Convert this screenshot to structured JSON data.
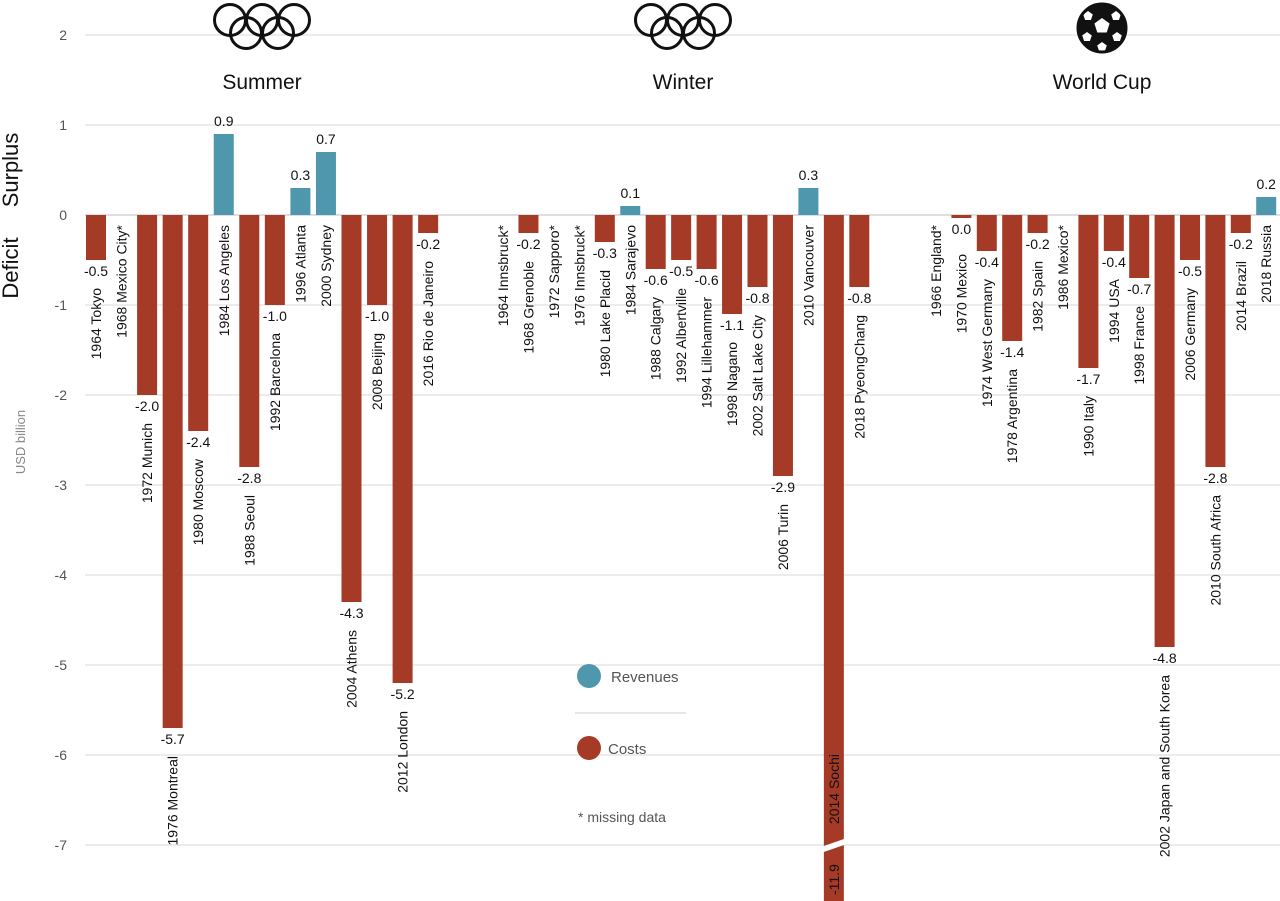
{
  "chart_data": {
    "type": "bar",
    "ylabel": "USD billion",
    "surplus_label": "Surplus",
    "deficit_label": "Deficit",
    "ylim": [
      -7.6,
      2.2
    ],
    "yticks": [
      2,
      1,
      0,
      -1,
      -2,
      -3,
      -4,
      -5,
      -6,
      -7
    ],
    "grid": true,
    "legend_position": "center-bottom",
    "colors": {
      "revenues": "#4e97ad",
      "costs": "#a53a27",
      "grid": "#d9d9d9"
    },
    "legend": {
      "revenues": "Revenues",
      "costs": "Costs",
      "note": "* missing data"
    },
    "panels": [
      {
        "title": "Summer",
        "icon": "olympic-rings-icon",
        "events": [
          {
            "label": "1964 Tokyo",
            "value": -0.5,
            "value_label": "-0.5"
          },
          {
            "label": "1968 Mexico City*",
            "value": null,
            "value_label": ""
          },
          {
            "label": "1972 Munich",
            "value": -2.0,
            "value_label": "-2.0"
          },
          {
            "label": "1976 Montreal",
            "value": -5.7,
            "value_label": "-5.7"
          },
          {
            "label": "1980 Moscow",
            "value": -2.4,
            "value_label": "-2.4"
          },
          {
            "label": "1984 Los Angeles",
            "value": 0.9,
            "value_label": "0.9"
          },
          {
            "label": "1988 Seoul",
            "value": -2.8,
            "value_label": "-2.8"
          },
          {
            "label": "1992 Barcelona",
            "value": -1.0,
            "value_label": "-1.0"
          },
          {
            "label": "1996 Atlanta",
            "value": 0.3,
            "value_label": "0.3"
          },
          {
            "label": "2000 Sydney",
            "value": 0.7,
            "value_label": "0.7"
          },
          {
            "label": "2004 Athens",
            "value": -4.3,
            "value_label": "-4.3"
          },
          {
            "label": "2008 Beijing",
            "value": -1.0,
            "value_label": "-1.0"
          },
          {
            "label": "2012 London",
            "value": -5.2,
            "value_label": "-5.2"
          },
          {
            "label": "2016 Rio de Janeiro",
            "value": -0.2,
            "value_label": "-0.2"
          }
        ]
      },
      {
        "title": "Winter",
        "icon": "olympic-rings-icon",
        "events": [
          {
            "label": "1964 Innsbruck*",
            "value": null,
            "value_label": ""
          },
          {
            "label": "1968 Grenoble",
            "value": -0.2,
            "value_label": "-0.2"
          },
          {
            "label": "1972 Sapporo*",
            "value": null,
            "value_label": ""
          },
          {
            "label": "1976 Innsbruck*",
            "value": null,
            "value_label": ""
          },
          {
            "label": "1980 Lake Placid",
            "value": -0.3,
            "value_label": "-0.3"
          },
          {
            "label": "1984 Sarajevo",
            "value": 0.1,
            "value_label": "0.1"
          },
          {
            "label": "1988 Calgary",
            "value": -0.6,
            "value_label": "-0.6"
          },
          {
            "label": "1992 Albertville",
            "value": -0.5,
            "value_label": "-0.5"
          },
          {
            "label": "1994 Lillehammer",
            "value": -0.6,
            "value_label": "-0.6"
          },
          {
            "label": "1998 Nagano",
            "value": -1.1,
            "value_label": "-1.1"
          },
          {
            "label": "2002 Salt Lake City",
            "value": -0.8,
            "value_label": "-0.8"
          },
          {
            "label": "2006 Turin",
            "value": -2.9,
            "value_label": "-2.9"
          },
          {
            "label": "2010 Vancouver",
            "value": 0.3,
            "value_label": "0.3"
          },
          {
            "label": "2014 Sochi",
            "value": -11.9,
            "value_label": "-11.9",
            "broken": true
          },
          {
            "label": "2018 PyeongChang",
            "value": -0.8,
            "value_label": "-0.8"
          }
        ]
      },
      {
        "title": "World Cup",
        "icon": "soccer-ball-icon",
        "events": [
          {
            "label": "1966 England*",
            "value": null,
            "value_label": ""
          },
          {
            "label": "1970 Mexico",
            "value": 0.0,
            "value_label": "0.0"
          },
          {
            "label": "1974 West Germany",
            "value": -0.4,
            "value_label": "-0.4"
          },
          {
            "label": "1978 Argentina",
            "value": -1.4,
            "value_label": "-1.4"
          },
          {
            "label": "1982 Spain",
            "value": -0.2,
            "value_label": "-0.2"
          },
          {
            "label": "1986 Mexico*",
            "value": null,
            "value_label": ""
          },
          {
            "label": "1990 Italy",
            "value": -1.7,
            "value_label": "-1.7"
          },
          {
            "label": "1994 USA",
            "value": -0.4,
            "value_label": "-0.4"
          },
          {
            "label": "1998 France",
            "value": -0.7,
            "value_label": "-0.7"
          },
          {
            "label": "2002 Japan and South Korea",
            "value": -4.8,
            "value_label": "-4.8"
          },
          {
            "label": "2006 Germany",
            "value": -0.5,
            "value_label": "-0.5"
          },
          {
            "label": "2010 South Africa",
            "value": -2.8,
            "value_label": "-2.8"
          },
          {
            "label": "2014 Brazil",
            "value": -0.2,
            "value_label": "-0.2"
          },
          {
            "label": "2018 Russia",
            "value": 0.2,
            "value_label": "0.2"
          }
        ]
      }
    ]
  }
}
